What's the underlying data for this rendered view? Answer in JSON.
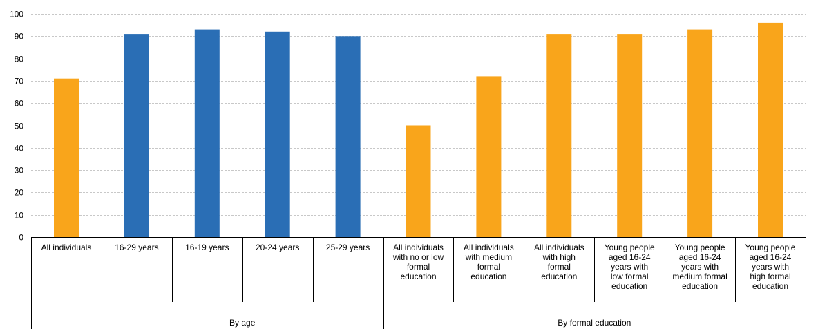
{
  "chart_data": {
    "type": "bar",
    "title": "",
    "xlabel": "",
    "ylabel": "",
    "ylim": [
      0,
      100
    ],
    "yticks": [
      0,
      10,
      20,
      30,
      40,
      50,
      60,
      70,
      80,
      90,
      100
    ],
    "grid": true,
    "legend": "none",
    "colors": {
      "orange": "#F9A51B",
      "blue": "#2A6EB5"
    },
    "categories": [
      {
        "label": [
          "All individuals"
        ],
        "value": 71,
        "color": "orange"
      },
      {
        "label": [
          "16-29 years"
        ],
        "value": 91,
        "color": "blue"
      },
      {
        "label": [
          "16-19 years"
        ],
        "value": 93,
        "color": "blue"
      },
      {
        "label": [
          "20-24 years"
        ],
        "value": 92,
        "color": "blue"
      },
      {
        "label": [
          "25-29 years"
        ],
        "value": 90,
        "color": "blue"
      },
      {
        "label": [
          "All individuals",
          "with no or low",
          "formal",
          "education"
        ],
        "value": 50,
        "color": "orange"
      },
      {
        "label": [
          "All individuals",
          "with medium",
          "formal",
          "education"
        ],
        "value": 72,
        "color": "orange"
      },
      {
        "label": [
          "All individuals",
          "with high",
          "formal",
          "education"
        ],
        "value": 91,
        "color": "orange"
      },
      {
        "label": [
          "Young people",
          "aged 16-24",
          "years with",
          "low formal",
          "education"
        ],
        "value": 91,
        "color": "orange"
      },
      {
        "label": [
          "Young people",
          "aged 16-24",
          "years with",
          "medium formal",
          "education"
        ],
        "value": 93,
        "color": "orange"
      },
      {
        "label": [
          "Young people",
          "aged 16-24",
          "years with",
          "high formal",
          "education"
        ],
        "value": 96,
        "color": "orange"
      }
    ],
    "groups": [
      {
        "label": "By age",
        "start": 1,
        "end": 4
      },
      {
        "label": "By formal education",
        "start": 5,
        "end": 10
      }
    ]
  }
}
